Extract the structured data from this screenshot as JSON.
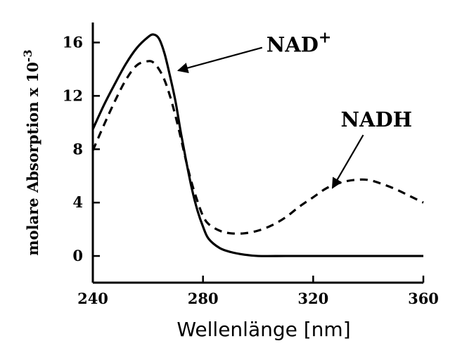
{
  "chart_data": {
    "type": "line",
    "xlabel": "Wellenlänge [nm]",
    "ylabel": {
      "text": "molare Absorption x 10",
      "sup": "-3"
    },
    "xlim": [
      240,
      360
    ],
    "ylim": [
      -2,
      17.5
    ],
    "x_ticks": [
      240,
      280,
      320,
      360
    ],
    "y_ticks": [
      0,
      4,
      8,
      12,
      16
    ],
    "x_tick_labels": [
      "240",
      "280",
      "320",
      "360"
    ],
    "y_tick_labels": [
      "0",
      "4",
      "8",
      "12",
      "16"
    ],
    "grid": false,
    "legend": "none",
    "series": [
      {
        "name": "NAD+",
        "style": "solid",
        "color": "#000000",
        "x": [
          240,
          244,
          248,
          252,
          256,
          260,
          262,
          264,
          266,
          268,
          270,
          272,
          274,
          276,
          278,
          280,
          282,
          286,
          290,
          295,
          300,
          310,
          320,
          330,
          340,
          350,
          360
        ],
        "y": [
          9.5,
          11.3,
          12.9,
          14.4,
          15.6,
          16.4,
          16.6,
          16.3,
          15.2,
          13.5,
          11.6,
          9.2,
          7.0,
          5.0,
          3.4,
          2.2,
          1.3,
          0.6,
          0.3,
          0.1,
          0.0,
          0.0,
          0.0,
          0.0,
          0.0,
          0.0,
          0.0
        ]
      },
      {
        "name": "NADH",
        "style": "dashed",
        "color": "#000000",
        "x": [
          240,
          244,
          248,
          252,
          256,
          260,
          262,
          264,
          266,
          268,
          270,
          272,
          274,
          276,
          278,
          280,
          282,
          286,
          290,
          295,
          300,
          305,
          310,
          315,
          320,
          325,
          330,
          335,
          340,
          345,
          350,
          355,
          360
        ],
        "y": [
          7.9,
          9.8,
          11.6,
          13.2,
          14.3,
          14.6,
          14.5,
          14.0,
          13.2,
          12.0,
          10.5,
          8.8,
          7.0,
          5.4,
          4.1,
          3.0,
          2.4,
          1.9,
          1.7,
          1.7,
          1.9,
          2.3,
          2.9,
          3.7,
          4.4,
          5.1,
          5.5,
          5.7,
          5.7,
          5.4,
          5.0,
          4.5,
          4.0
        ]
      }
    ],
    "annotations": [
      {
        "name": "NAD-label",
        "text": "NAD",
        "sup": "+",
        "x": 303,
        "y": 15.3,
        "arrow_to": [
          271,
          13.9
        ]
      },
      {
        "name": "NADH-label",
        "text": "NADH",
        "x": 330,
        "y": 9.7,
        "arrow_to": [
          327,
          5.1
        ]
      }
    ]
  }
}
